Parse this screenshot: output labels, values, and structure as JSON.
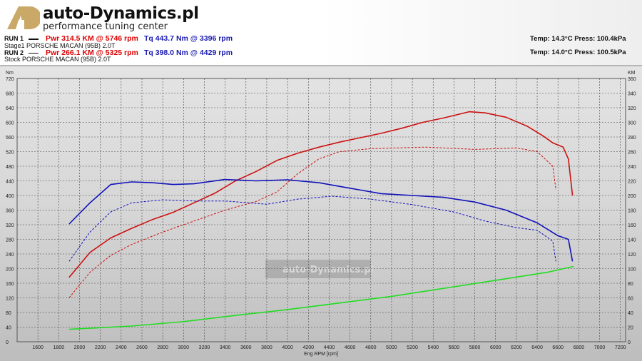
{
  "brand": {
    "name": "auto-Dynamics.pl",
    "tagline": "performance tuning center",
    "logo_letters": "AD"
  },
  "runs": [
    {
      "label": "RUN 1",
      "desc": "Stage1  PORSCHE MACAN (95B) 2.0T",
      "pwr": "Pwr  314.5 KM @ 5746 rpm",
      "tq": "Tq 443.7 Nm @ 3396 rpm",
      "env": "Temp: 14.3°C   Press: 100.4kPa"
    },
    {
      "label": "RUN 2",
      "desc": "Stock  PORSCHE MACAN (95B) 2.0T",
      "pwr": "Pwr  266.1 KM @ 5325 rpm",
      "tq": "Tq 398.0 Nm @ 4429 rpm",
      "env": "Temp: 14.0°C   Press: 100.5kPa"
    }
  ],
  "colors": {
    "power": "#cc1111",
    "torque": "#1111bb",
    "green": "#22dd22"
  },
  "chart_data": {
    "type": "line",
    "xlabel": "Eng RPM [rpm]",
    "ylabel_left": "Nm",
    "ylabel_right": "KM",
    "xlim": [
      1400,
      7250
    ],
    "ylim_left": [
      0,
      720
    ],
    "ylim_right": [
      0,
      360
    ],
    "xticks": [
      1600,
      1800,
      2000,
      2200,
      2400,
      2600,
      2800,
      3000,
      3200,
      3400,
      3600,
      3800,
      4000,
      4200,
      4400,
      4600,
      4800,
      5000,
      5200,
      5400,
      5600,
      5800,
      6000,
      6200,
      6400,
      6600,
      6800,
      7000,
      7200
    ],
    "yticks_left": [
      0,
      40,
      80,
      120,
      160,
      200,
      240,
      280,
      320,
      360,
      400,
      440,
      480,
      520,
      560,
      600,
      640,
      680,
      720
    ],
    "yticks_right": [
      0,
      20,
      40,
      60,
      80,
      100,
      120,
      140,
      160,
      180,
      200,
      220,
      240,
      260,
      280,
      300,
      320,
      340,
      360
    ],
    "grid": true,
    "series": [
      {
        "name": "RUN 1 Power",
        "axis": "right",
        "style": "solid",
        "color": "#cc1111",
        "x": [
          1900,
          2100,
          2300,
          2500,
          2700,
          2900,
          3100,
          3300,
          3500,
          3700,
          3900,
          4100,
          4300,
          4500,
          4700,
          4900,
          5100,
          5300,
          5500,
          5746,
          5900,
          6100,
          6300,
          6450,
          6550,
          6650,
          6700,
          6740
        ],
        "y": [
          88,
          122,
          142,
          155,
          167,
          177,
          190,
          203,
          220,
          233,
          248,
          258,
          266,
          273,
          279,
          285,
          292,
          300,
          306,
          314.5,
          313,
          307,
          295,
          282,
          272,
          266,
          250,
          200
        ]
      },
      {
        "name": "RUN 1 Torque",
        "axis": "left",
        "style": "solid",
        "color": "#1111bb",
        "x": [
          1900,
          2100,
          2300,
          2500,
          2700,
          2900,
          3100,
          3396,
          3700,
          4000,
          4300,
          4600,
          4900,
          5200,
          5500,
          5800,
          6100,
          6400,
          6600,
          6700,
          6740
        ],
        "y": [
          322,
          380,
          430,
          437,
          435,
          430,
          432,
          443.7,
          440,
          443,
          435,
          420,
          405,
          400,
          395,
          382,
          360,
          325,
          290,
          280,
          220
        ]
      },
      {
        "name": "RUN 2 Power",
        "axis": "right",
        "style": "dashed",
        "color": "#cc1111",
        "x": [
          1900,
          2100,
          2300,
          2500,
          2800,
          3100,
          3400,
          3700,
          3900,
          4100,
          4300,
          4500,
          4800,
          5325,
          5800,
          6200,
          6400,
          6550,
          6580
        ],
        "y": [
          60,
          95,
          118,
          133,
          150,
          165,
          180,
          192,
          205,
          230,
          250,
          260,
          264,
          266.1,
          263,
          265,
          260,
          240,
          208
        ]
      },
      {
        "name": "RUN 2 Torque",
        "axis": "left",
        "style": "dashed",
        "color": "#1111bb",
        "x": [
          1900,
          2100,
          2300,
          2500,
          2800,
          3100,
          3400,
          3800,
          4100,
          4429,
          4800,
          5200,
          5600,
          5900,
          6200,
          6400,
          6550,
          6580
        ],
        "y": [
          220,
          300,
          355,
          380,
          388,
          385,
          385,
          376,
          390,
          398,
          390,
          375,
          355,
          330,
          312,
          305,
          275,
          220
        ]
      },
      {
        "name": "Green trace",
        "axis": "left",
        "style": "solid",
        "color": "#22dd22",
        "x": [
          1900,
          2500,
          3000,
          3500,
          4000,
          4500,
          5000,
          5500,
          6000,
          6500,
          6750
        ],
        "y": [
          34,
          43,
          55,
          72,
          88,
          106,
          124,
          146,
          168,
          190,
          206
        ]
      }
    ]
  }
}
